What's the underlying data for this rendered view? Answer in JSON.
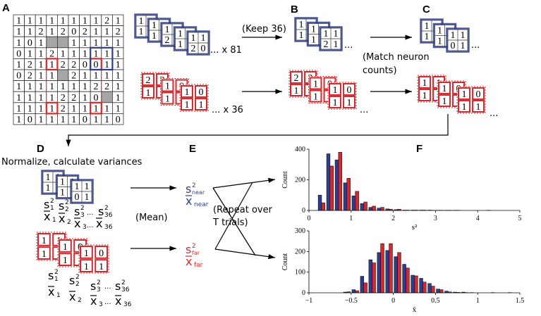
{
  "panels": {
    "a": "A",
    "b": "B",
    "c": "C",
    "d": "D",
    "e": "E",
    "f": "F"
  },
  "colors": {
    "near": "#2e3d8f",
    "far": "#d42a2f",
    "gray": "#a6a6a6"
  },
  "grid_a": [
    [
      1,
      1,
      1,
      1,
      1,
      1,
      1,
      1,
      2,
      1
    ],
    [
      1,
      1,
      2,
      1,
      2,
      0,
      2,
      1,
      1,
      2
    ],
    [
      1,
      0,
      1,
      null,
      null,
      1,
      1,
      1,
      1,
      1
    ],
    [
      0,
      1,
      1,
      2,
      1,
      1,
      1,
      1,
      1,
      1
    ],
    [
      1,
      2,
      1,
      1,
      2,
      2,
      0,
      0,
      1,
      1
    ],
    [
      0,
      2,
      1,
      1,
      null,
      2,
      1,
      1,
      1,
      1
    ],
    [
      1,
      1,
      1,
      1,
      1,
      1,
      1,
      2,
      2,
      1
    ],
    [
      1,
      1,
      1,
      1,
      2,
      2,
      1,
      0,
      null,
      1
    ],
    [
      1,
      1,
      1,
      1,
      2,
      1,
      1,
      1,
      1,
      1
    ],
    [
      1,
      0,
      1,
      1,
      1,
      1,
      0,
      1,
      1,
      0
    ]
  ],
  "stacks": {
    "a_blue": [
      [
        1,
        null,
        1,
        null
      ],
      [
        1,
        null,
        1,
        null
      ],
      [
        1,
        null,
        2,
        null
      ],
      [
        1,
        null,
        1,
        null
      ],
      [
        1,
        1,
        2,
        0
      ]
    ],
    "a_red": [
      [
        2,
        2,
        1,
        null
      ],
      [
        1,
        0,
        1,
        null
      ],
      [
        1,
        0,
        1,
        1
      ]
    ],
    "b_blue": [
      [
        1,
        null,
        1,
        null
      ],
      [
        1,
        null,
        1,
        null
      ],
      [
        1,
        1,
        2,
        1
      ]
    ],
    "b_red": [
      [
        2,
        2,
        1,
        null
      ],
      [
        1,
        0,
        1,
        null
      ],
      [
        1,
        0,
        1,
        1
      ]
    ],
    "c_blue": [
      [
        1,
        null,
        1,
        null
      ],
      [
        1,
        null,
        1,
        null
      ],
      [
        1,
        1,
        0,
        1
      ]
    ],
    "c_red": [
      [
        1,
        1,
        1,
        null
      ],
      [
        1,
        0,
        1,
        null
      ],
      [
        1,
        0,
        1,
        1
      ]
    ],
    "d_blue": [
      [
        1,
        1,
        1,
        null
      ],
      [
        1,
        1,
        1,
        null
      ],
      [
        1,
        1,
        0,
        1
      ]
    ],
    "d_red": [
      [
        1,
        1,
        1,
        null
      ],
      [
        1,
        0,
        1,
        null
      ],
      [
        1,
        0,
        1,
        1
      ]
    ]
  },
  "text": {
    "count_near": "... x 81",
    "count_far": "... x 36",
    "keep": "(Keep 36)",
    "match_1": "(Match neuron",
    "match_2": "counts)",
    "ellipsis": "...",
    "normalize": "Normalize, calculate variances",
    "mean": "(Mean)",
    "repeat_1": "(Repeat over",
    "repeat_2": "T trials)",
    "s": "s",
    "x": "x",
    "sq": "2",
    "near": "near",
    "far": "far"
  },
  "stat_subscripts": [
    "1",
    "2",
    "3",
    "36"
  ],
  "chart_data": [
    {
      "type": "bar",
      "xlabel": "s²",
      "ylabel": "Count",
      "xlim": [
        0,
        5
      ],
      "ylim": [
        0,
        400
      ],
      "xticks": [
        "0",
        "1",
        "2",
        "3",
        "4",
        "5"
      ],
      "yticks": [
        "0",
        "200",
        "400"
      ],
      "x": [
        0.3,
        0.5,
        0.7,
        0.9,
        1.1,
        1.3,
        1.5,
        1.7,
        1.9,
        2.1,
        2.3,
        2.5,
        2.7,
        2.9,
        3.1,
        3.3,
        3.5,
        4.3
      ],
      "series": [
        {
          "color": "#2e3d8f",
          "values": [
            100,
            370,
            330,
            180,
            95,
            45,
            20,
            15,
            10,
            5,
            2,
            2,
            2,
            2,
            1,
            1,
            1,
            1
          ]
        },
        {
          "color": "#d42a2f",
          "values": [
            50,
            290,
            380,
            210,
            125,
            55,
            28,
            20,
            8,
            8,
            2,
            2,
            2,
            1,
            1,
            1,
            1,
            0
          ]
        }
      ]
    },
    {
      "type": "bar",
      "xlabel": "x̄",
      "ylabel": "Count",
      "xlim": [
        -1,
        1.5
      ],
      "ylim": [
        0,
        300
      ],
      "xticks": [
        "−1",
        "−0.5",
        "0",
        "0.5",
        "1",
        "1.5"
      ],
      "yticks": [
        "0",
        "100",
        "200",
        "300"
      ],
      "x": [
        -0.55,
        -0.45,
        -0.35,
        -0.25,
        -0.15,
        -0.05,
        0.05,
        0.15,
        0.25,
        0.35,
        0.45,
        0.55,
        0.65,
        0.75,
        0.85,
        0.95,
        1.2,
        1.4
      ],
      "series": [
        {
          "color": "#2e3d8f",
          "values": [
            3,
            15,
            80,
            160,
            195,
            205,
            175,
            138,
            85,
            70,
            45,
            18,
            8,
            3,
            3,
            1,
            1,
            1
          ]
        },
        {
          "color": "#d42a2f",
          "values": [
            5,
            10,
            48,
            145,
            238,
            238,
            195,
            120,
            82,
            52,
            32,
            15,
            4,
            2,
            1,
            0,
            0,
            0
          ]
        }
      ]
    }
  ]
}
